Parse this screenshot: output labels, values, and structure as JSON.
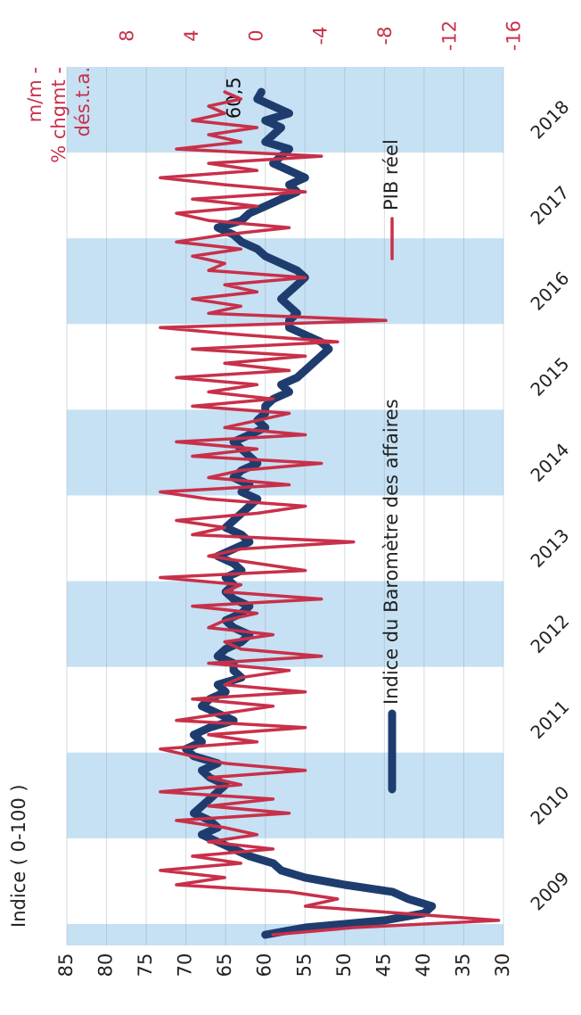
{
  "chart_data": {
    "type": "line",
    "y_label": "Indice ( 0-100 )",
    "y2_label": [
      "m/m -",
      "% chgmt -",
      "dés.t.a."
    ],
    "xlim": [
      2008.75,
      2019
    ],
    "xticks": [
      {
        "value": 2009.5,
        "label": "2009"
      },
      {
        "value": 2010.5,
        "label": "2010"
      },
      {
        "value": 2011.5,
        "label": "2011"
      },
      {
        "value": 2012.5,
        "label": "2012"
      },
      {
        "value": 2013.5,
        "label": "2013"
      },
      {
        "value": 2014.5,
        "label": "2014"
      },
      {
        "value": 2015.5,
        "label": "2015"
      },
      {
        "value": 2016.5,
        "label": "2016"
      },
      {
        "value": 2017.5,
        "label": "2017"
      },
      {
        "value": 2018.5,
        "label": "2018"
      }
    ],
    "ylim": [
      30,
      85
    ],
    "yticks": [
      85,
      80,
      75,
      70,
      65,
      60,
      55,
      50,
      45,
      40,
      35,
      30
    ],
    "y2lim": [
      -15.3,
      11.8
    ],
    "y2ticks": [
      8,
      4,
      0,
      -4,
      -8,
      -12,
      -16
    ],
    "grid": true,
    "band_color": "#c6e1f3",
    "x": [
      2008.875,
      2008.958,
      2009.042,
      2009.125,
      2009.208,
      2009.292,
      2009.375,
      2009.458,
      2009.542,
      2009.625,
      2009.708,
      2009.792,
      2009.875,
      2009.958,
      2010.042,
      2010.125,
      2010.208,
      2010.292,
      2010.375,
      2010.458,
      2010.542,
      2010.625,
      2010.708,
      2010.792,
      2010.875,
      2010.958,
      2011.042,
      2011.125,
      2011.208,
      2011.292,
      2011.375,
      2011.458,
      2011.542,
      2011.625,
      2011.708,
      2011.792,
      2011.875,
      2011.958,
      2012.042,
      2012.125,
      2012.208,
      2012.292,
      2012.375,
      2012.458,
      2012.542,
      2012.625,
      2012.708,
      2012.792,
      2012.875,
      2012.958,
      2013.042,
      2013.125,
      2013.208,
      2013.292,
      2013.375,
      2013.458,
      2013.542,
      2013.625,
      2013.708,
      2013.792,
      2013.875,
      2013.958,
      2014.042,
      2014.125,
      2014.208,
      2014.292,
      2014.375,
      2014.458,
      2014.542,
      2014.625,
      2014.708,
      2014.792,
      2014.875,
      2014.958,
      2015.042,
      2015.125,
      2015.208,
      2015.292,
      2015.375,
      2015.458,
      2015.542,
      2015.625,
      2015.708,
      2015.792,
      2015.875,
      2015.958,
      2016.042,
      2016.125,
      2016.208,
      2016.292,
      2016.375,
      2016.458,
      2016.542,
      2016.625,
      2016.708,
      2016.792,
      2016.875,
      2016.958,
      2017.042,
      2017.125,
      2017.208,
      2017.292,
      2017.375,
      2017.458,
      2017.542,
      2017.625,
      2017.708,
      2017.792,
      2017.875,
      2017.958,
      2018.042,
      2018.125,
      2018.208,
      2018.292,
      2018.375,
      2018.458,
      2018.542,
      2018.625,
      2018.708
    ],
    "series": [
      {
        "name": "Indice du Baromètre des affaires",
        "color": "#1e3d6e",
        "values": [
          60,
          55,
          45,
          40,
          39,
          42,
          44,
          50,
          55,
          58,
          59,
          62,
          64,
          66,
          68,
          66,
          67,
          69,
          68,
          67,
          66,
          65,
          67,
          68,
          66,
          69,
          70,
          68,
          69,
          67,
          64,
          66,
          68,
          67,
          65,
          66,
          63,
          64,
          64,
          66,
          65,
          63,
          62,
          64,
          65,
          63,
          62,
          64,
          65,
          64,
          65,
          63,
          64,
          66,
          64,
          62,
          63,
          65,
          64,
          63,
          62,
          61,
          63,
          62,
          64,
          63,
          61,
          62,
          63,
          64,
          62,
          60,
          61,
          60,
          60,
          59,
          57,
          58,
          56,
          55,
          54,
          53,
          52,
          53,
          55,
          57,
          57,
          56,
          57,
          58,
          57,
          56,
          55,
          56,
          58,
          60,
          61,
          63,
          64,
          66,
          63,
          62,
          60,
          58,
          56,
          57,
          55,
          57,
          59,
          58,
          57,
          60,
          59,
          58,
          60,
          57,
          59,
          61,
          60.5
        ],
        "value_labels": [
          null,
          null,
          null,
          null,
          null,
          null,
          null,
          null,
          null,
          null,
          null,
          null,
          null,
          null,
          null,
          null,
          null,
          null,
          null,
          null,
          null,
          null,
          null,
          null,
          null,
          null,
          null,
          null,
          null,
          null,
          null,
          null,
          null,
          null,
          null,
          null,
          null,
          null,
          null,
          null,
          null,
          null,
          null,
          null,
          null,
          null,
          null,
          null,
          null,
          null,
          null,
          null,
          null,
          null,
          null,
          null,
          null,
          null,
          null,
          null,
          null,
          null,
          null,
          null,
          null,
          null,
          null,
          null,
          null,
          null,
          null,
          null,
          null,
          null,
          null,
          null,
          null,
          null,
          null,
          null,
          null,
          null,
          null,
          null,
          null,
          null,
          null,
          null,
          null,
          null,
          null,
          null,
          null,
          null,
          null,
          null,
          null,
          null,
          null,
          null,
          null,
          null,
          null,
          null,
          null,
          null,
          null,
          null,
          null,
          null,
          null,
          null,
          null,
          null,
          null,
          null,
          null,
          null,
          "60,5"
        ]
      },
      {
        "name": "PIB réel",
        "color": "#c8304a",
        "axis": "y2",
        "values": [
          -1,
          -6,
          -15,
          -9,
          -3,
          -5,
          -2,
          5,
          2,
          6,
          1,
          4,
          -1,
          3,
          0,
          2,
          5,
          -2,
          3,
          -1,
          6,
          1,
          3,
          -3,
          2,
          4,
          6,
          0,
          3,
          -3,
          5,
          2,
          -1,
          4,
          -3,
          2,
          1,
          -2,
          3,
          -4,
          1,
          2,
          -1,
          3,
          2,
          0,
          4,
          -4,
          2,
          1,
          6,
          -3,
          0,
          3,
          1,
          -6,
          4,
          2,
          5,
          0,
          -3,
          3,
          6,
          -2,
          3,
          1,
          -4,
          4,
          0,
          5,
          -3,
          2,
          0,
          -2,
          4,
          -1,
          3,
          0,
          5,
          -2,
          2,
          -3,
          4,
          -5,
          1,
          6,
          -8,
          3,
          1,
          4,
          0,
          2,
          -3,
          3,
          2,
          4,
          1,
          5,
          2,
          -2,
          3,
          5,
          0,
          4,
          -3,
          2,
          6,
          0,
          3,
          -4,
          5,
          1,
          3,
          0,
          4,
          2,
          3,
          1,
          2
        ]
      }
    ]
  }
}
